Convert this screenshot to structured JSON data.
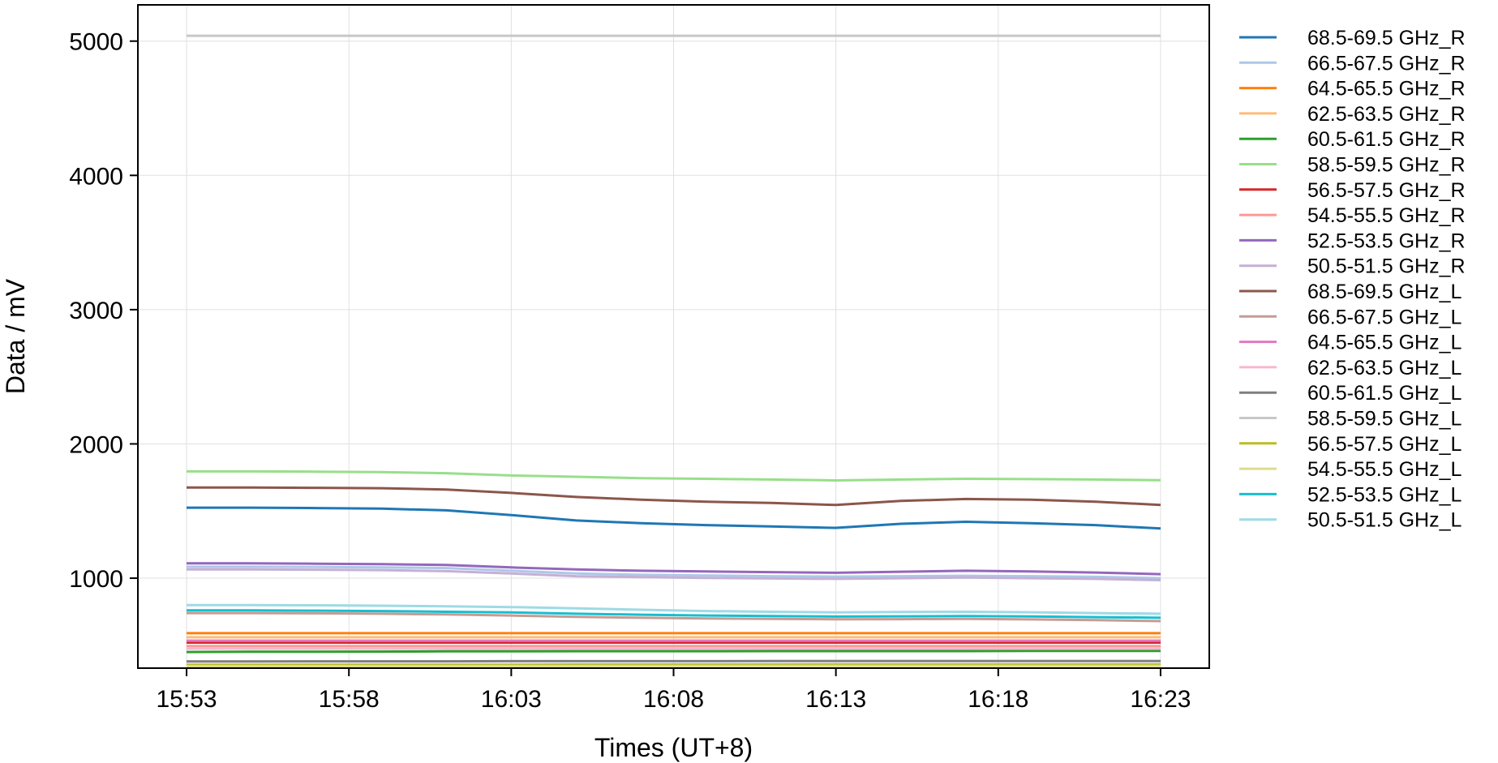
{
  "chart_data": {
    "type": "line",
    "xlabel": "Times (UT+8)",
    "ylabel": "Data / mV",
    "x_ticks": [
      "15:53",
      "15:58",
      "16:03",
      "16:08",
      "16:13",
      "16:18",
      "16:23"
    ],
    "x_tick_minutes": [
      0,
      5,
      10,
      15,
      20,
      25,
      30
    ],
    "xlim_minutes": [
      -1.5,
      31.5
    ],
    "y_ticks": [
      1000,
      2000,
      3000,
      4000,
      5000
    ],
    "ylim": [
      330,
      5270
    ],
    "grid": true,
    "legend_position": "right-outside",
    "x_minutes": [
      0,
      2,
      4,
      6,
      8,
      10,
      12,
      14,
      16,
      18,
      20,
      22,
      24,
      26,
      28,
      30
    ],
    "series": [
      {
        "name": "68.5-69.5 GHz_R",
        "color": "#1f77b4",
        "values": [
          1525,
          1525,
          1522,
          1518,
          1505,
          1470,
          1430,
          1410,
          1395,
          1385,
          1375,
          1405,
          1420,
          1410,
          1395,
          1370
        ]
      },
      {
        "name": "66.5-67.5 GHz_R",
        "color": "#aec7e8",
        "values": [
          1085,
          1085,
          1083,
          1080,
          1075,
          1055,
          1035,
          1025,
          1020,
          1015,
          1012,
          1015,
          1018,
          1015,
          1010,
          1000
        ]
      },
      {
        "name": "64.5-65.5 GHz_R",
        "color": "#ff7f0e",
        "values": [
          590,
          590,
          590,
          590,
          590,
          590,
          590,
          590,
          590,
          590,
          590,
          590,
          590,
          590,
          590,
          590
        ]
      },
      {
        "name": "62.5-63.5 GHz_R",
        "color": "#ffbb78",
        "values": [
          560,
          560,
          560,
          560,
          560,
          560,
          560,
          560,
          560,
          560,
          560,
          560,
          560,
          560,
          560,
          560
        ]
      },
      {
        "name": "60.5-61.5 GHz_R",
        "color": "#2ca02c",
        "values": [
          450,
          452,
          452,
          453,
          455,
          455,
          456,
          456,
          456,
          457,
          457,
          457,
          457,
          458,
          458,
          458
        ]
      },
      {
        "name": "58.5-59.5 GHz_R",
        "color": "#98df8a",
        "values": [
          1795,
          1795,
          1793,
          1790,
          1782,
          1765,
          1755,
          1745,
          1740,
          1735,
          1728,
          1735,
          1740,
          1738,
          1735,
          1730
        ]
      },
      {
        "name": "56.5-57.5 GHz_R",
        "color": "#d62728",
        "values": [
          520,
          520,
          520,
          520,
          520,
          520,
          520,
          520,
          520,
          520,
          520,
          520,
          520,
          520,
          520,
          520
        ]
      },
      {
        "name": "54.5-55.5 GHz_R",
        "color": "#ff9896",
        "values": [
          495,
          495,
          495,
          495,
          495,
          495,
          495,
          495,
          495,
          495,
          495,
          495,
          495,
          495,
          495,
          495
        ]
      },
      {
        "name": "52.5-53.5 GHz_R",
        "color": "#9467bd",
        "values": [
          1110,
          1110,
          1108,
          1105,
          1098,
          1080,
          1065,
          1055,
          1050,
          1045,
          1040,
          1048,
          1055,
          1050,
          1042,
          1030
        ]
      },
      {
        "name": "50.5-51.5 GHz_R",
        "color": "#c5b0d5",
        "values": [
          1065,
          1065,
          1063,
          1060,
          1052,
          1035,
          1015,
          1008,
          1002,
          998,
          995,
          1000,
          1005,
          1000,
          995,
          985
        ]
      },
      {
        "name": "68.5-69.5 GHz_L",
        "color": "#8c564b",
        "values": [
          1675,
          1675,
          1673,
          1670,
          1660,
          1635,
          1605,
          1585,
          1570,
          1560,
          1545,
          1575,
          1590,
          1585,
          1570,
          1545
        ]
      },
      {
        "name": "66.5-67.5 GHz_L",
        "color": "#c49c94",
        "values": [
          740,
          740,
          738,
          735,
          730,
          722,
          712,
          705,
          700,
          697,
          694,
          695,
          697,
          693,
          688,
          680
        ]
      },
      {
        "name": "64.5-65.5 GHz_L",
        "color": "#e377c2",
        "values": [
          535,
          535,
          535,
          535,
          535,
          535,
          535,
          535,
          535,
          535,
          535,
          535,
          535,
          535,
          535,
          535
        ]
      },
      {
        "name": "62.5-63.5 GHz_L",
        "color": "#f7b6d2",
        "values": [
          475,
          475,
          475,
          475,
          475,
          475,
          475,
          475,
          475,
          475,
          475,
          475,
          475,
          475,
          475,
          475
        ]
      },
      {
        "name": "60.5-61.5 GHz_L",
        "color": "#7f7f7f",
        "values": [
          380,
          380,
          381,
          381,
          381,
          382,
          382,
          382,
          382,
          383,
          383,
          383,
          383,
          383,
          383,
          383
        ]
      },
      {
        "name": "58.5-59.5 GHz_L",
        "color": "#c7c7c7",
        "values": [
          5040,
          5040,
          5040,
          5040,
          5040,
          5040,
          5040,
          5040,
          5040,
          5040,
          5040,
          5040,
          5040,
          5040,
          5040,
          5040
        ]
      },
      {
        "name": "56.5-57.5 GHz_L",
        "color": "#bcbd22",
        "values": [
          355,
          355,
          356,
          356,
          356,
          356,
          357,
          357,
          357,
          357,
          358,
          358,
          358,
          358,
          358,
          358
        ]
      },
      {
        "name": "54.5-55.5 GHz_L",
        "color": "#dbdb8d",
        "values": [
          345,
          345,
          345,
          346,
          346,
          346,
          346,
          347,
          347,
          347,
          347,
          347,
          347,
          347,
          347,
          347
        ]
      },
      {
        "name": "52.5-53.5 GHz_L",
        "color": "#17becf",
        "values": [
          760,
          760,
          758,
          755,
          750,
          745,
          735,
          728,
          722,
          718,
          714,
          716,
          718,
          715,
          710,
          705
        ]
      },
      {
        "name": "50.5-51.5 GHz_L",
        "color": "#9edae5",
        "values": [
          800,
          800,
          798,
          795,
          790,
          785,
          775,
          765,
          755,
          750,
          745,
          748,
          750,
          746,
          740,
          735
        ]
      }
    ]
  }
}
